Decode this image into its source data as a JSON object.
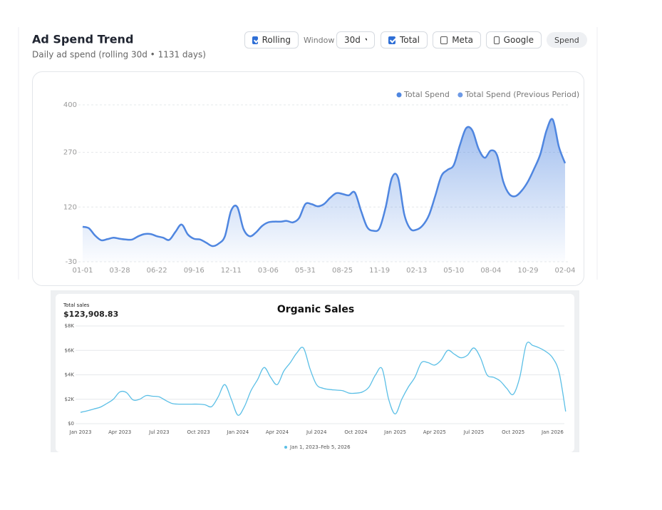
{
  "toolbar": {
    "rolling": "Rolling",
    "window_label": "Window",
    "window": "30d",
    "total": "Total",
    "meta": "Meta",
    "google": "Google",
    "metric": "Spend"
  },
  "chart_data": [
    {
      "type": "area",
      "title": "Ad Spend Trend",
      "subtitle": "Daily ad spend (rolling 30d • 1131 days)",
      "categories": [
        "01-01",
        null,
        null,
        null,
        null,
        null,
        "03-28",
        null,
        null,
        null,
        null,
        null,
        "06-22",
        null,
        null,
        null,
        null,
        null,
        "09-16",
        null,
        null,
        null,
        null,
        null,
        "12-11",
        null,
        null,
        null,
        null,
        null,
        "03-06",
        null,
        null,
        null,
        null,
        null,
        "05-31",
        null,
        null,
        null,
        null,
        null,
        "08-25",
        null,
        null,
        null,
        null,
        null,
        "11-19",
        null,
        null,
        null,
        null,
        null,
        "02-13",
        null,
        null,
        null,
        null,
        null,
        "05-10",
        null,
        null,
        null,
        null,
        null,
        "08-04",
        null,
        null,
        null,
        null,
        null,
        "10-29",
        null,
        null,
        null,
        null,
        null,
        "02-04"
      ],
      "series": [
        {
          "name": "Total Spend",
          "color": "#4f86e0",
          "values": [
            66,
            62,
            42,
            29,
            32,
            36,
            33,
            31,
            31,
            40,
            46,
            46,
            40,
            36,
            30,
            52,
            72,
            45,
            33,
            31,
            22,
            13,
            20,
            40,
            110,
            120,
            60,
            40,
            50,
            68,
            78,
            80,
            80,
            82,
            78,
            90,
            128,
            128,
            122,
            128,
            145,
            158,
            156,
            152,
            160,
            110,
            65,
            55,
            62,
            120,
            200,
            200,
            100,
            60,
            58,
            70,
            98,
            150,
            205,
            222,
            235,
            290,
            336,
            330,
            280,
            255,
            275,
            262,
            190,
            155,
            150,
            165,
            190,
            225,
            265,
            330,
            360,
            285,
            240
          ]
        },
        {
          "name": "Total Spend (Previous Period)",
          "color": "#6e9ae6",
          "values": [
            null,
            null,
            null,
            null,
            null,
            null,
            null,
            null,
            null,
            null,
            null,
            null,
            null,
            null,
            null,
            null,
            null,
            null,
            null,
            null,
            null,
            null,
            null,
            null,
            null,
            null,
            null,
            null,
            null,
            null,
            null,
            null,
            null,
            null,
            null,
            null,
            null,
            null,
            null,
            null,
            null,
            null,
            null,
            null,
            null,
            null,
            null,
            null,
            null,
            null,
            null,
            null,
            null,
            null,
            null,
            null,
            null,
            null,
            null,
            null,
            null,
            null,
            null,
            null,
            null,
            null,
            null,
            null,
            null,
            null,
            null,
            null,
            null,
            null,
            null,
            null,
            null,
            null,
            null
          ]
        }
      ],
      "ylim": [
        -30,
        400
      ],
      "yticks": [
        -30,
        120,
        270,
        400
      ],
      "grid": true
    },
    {
      "type": "line",
      "title": "Organic Sales",
      "summary_label": "Total sales",
      "summary_value": "$123,908.83",
      "categories": [
        "Jan 2023",
        null,
        null,
        null,
        null,
        null,
        "Apr 2023",
        null,
        null,
        null,
        null,
        null,
        "Jul 2023",
        null,
        null,
        null,
        null,
        null,
        "Oct 2023",
        null,
        null,
        null,
        null,
        null,
        "Jan 2024",
        null,
        null,
        null,
        null,
        null,
        "Apr 2024",
        null,
        null,
        null,
        null,
        null,
        "Jul 2024",
        null,
        null,
        null,
        null,
        null,
        "Oct 2024",
        null,
        null,
        null,
        null,
        null,
        "Jan 2025",
        null,
        null,
        null,
        null,
        null,
        "Apr 2025",
        null,
        null,
        null,
        null,
        null,
        "Jul 2025",
        null,
        null,
        null,
        null,
        null,
        "Oct 2025",
        null,
        null,
        null,
        null,
        null,
        "Jan 2026",
        null,
        null
      ],
      "series": [
        {
          "name": "Jan 1, 2023–Feb 5, 2026",
          "color": "#5bbfe6",
          "values": [
            930,
            1050,
            1200,
            1350,
            1650,
            2000,
            2600,
            2550,
            1950,
            2000,
            2300,
            2250,
            2200,
            1900,
            1650,
            1600,
            1600,
            1600,
            1600,
            1550,
            1400,
            2200,
            3200,
            2000,
            700,
            1400,
            2700,
            3600,
            4600,
            3800,
            3200,
            4300,
            5000,
            5800,
            6200,
            4500,
            3200,
            2900,
            2800,
            2750,
            2700,
            2500,
            2500,
            2600,
            3000,
            4000,
            4500,
            2000,
            800,
            2000,
            3000,
            3800,
            5000,
            5000,
            4800,
            5200,
            6000,
            5700,
            5400,
            5600,
            6200,
            5400,
            4000,
            3800,
            3500,
            2900,
            2400,
            3800,
            6500,
            6400,
            6200,
            5900,
            5400,
            4200,
            1000
          ]
        }
      ],
      "ylim": [
        0,
        8000
      ],
      "yticks": [
        {
          "value": 0,
          "label": "$0"
        },
        {
          "value": 2000,
          "label": "$2K"
        },
        {
          "value": 4000,
          "label": "$4K"
        },
        {
          "value": 6000,
          "label": "$6K"
        },
        {
          "value": 8000,
          "label": "$8K"
        }
      ],
      "grid": true
    }
  ]
}
